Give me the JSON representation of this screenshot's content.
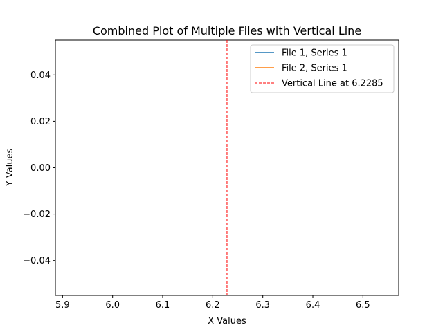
{
  "chart_data": {
    "type": "line",
    "title": "Combined Plot of Multiple Files with Vertical Line",
    "xlabel": "X Values",
    "ylabel": "Y Values",
    "xlim": [
      5.8857,
      6.5714
    ],
    "ylim": [
      -0.055,
      0.055
    ],
    "xticks": [
      5.9,
      6.0,
      6.1,
      6.2,
      6.3,
      6.4,
      6.5
    ],
    "xtick_labels": [
      "5.9",
      "6.0",
      "6.1",
      "6.2",
      "6.3",
      "6.4",
      "6.5"
    ],
    "yticks": [
      -0.04,
      -0.02,
      0.0,
      0.02,
      0.04
    ],
    "ytick_labels": [
      "−0.04",
      "−0.02",
      "0.00",
      "0.02",
      "0.04"
    ],
    "grid": false,
    "legend_position": "top-right",
    "series": [
      {
        "name": "File 1, Series 1",
        "color": "#1f77b4",
        "style": "solid",
        "x": [],
        "y": []
      },
      {
        "name": "File 2, Series 1",
        "color": "#ff7f0e",
        "style": "solid",
        "x": [],
        "y": []
      }
    ],
    "vlines": [
      {
        "name": "Vertical Line at 6.2285",
        "x": 6.2285,
        "color": "#ff0000",
        "style": "dashed"
      }
    ]
  }
}
